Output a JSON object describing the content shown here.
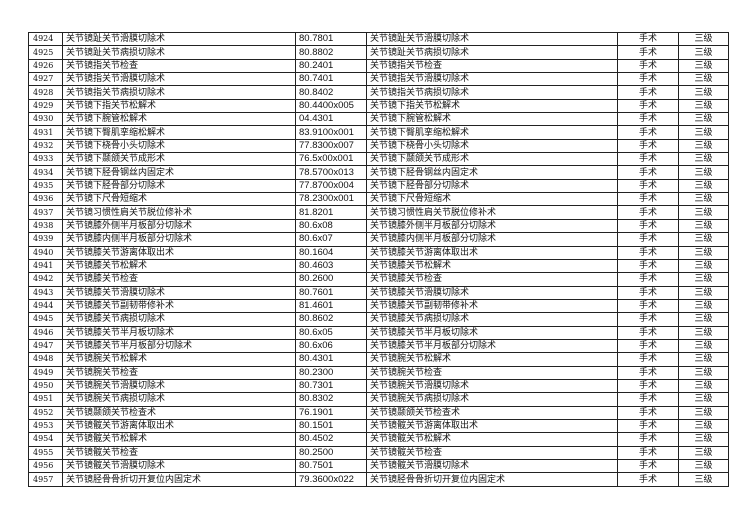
{
  "table": {
    "rows": [
      {
        "no": "4924",
        "name": "关节镜趾关节滑膜切除术",
        "code": "80.7801",
        "name2": "关节镜趾关节滑膜切除术",
        "type": "手术",
        "level": "三级"
      },
      {
        "no": "4925",
        "name": "关节镜趾关节病损切除术",
        "code": "80.8802",
        "name2": "关节镜趾关节病损切除术",
        "type": "手术",
        "level": "三级"
      },
      {
        "no": "4926",
        "name": "关节镜指关节检查",
        "code": "80.2401",
        "name2": "关节镜指关节检查",
        "type": "手术",
        "level": "三级"
      },
      {
        "no": "4927",
        "name": "关节镜指关节滑膜切除术",
        "code": "80.7401",
        "name2": "关节镜指关节滑膜切除术",
        "type": "手术",
        "level": "三级"
      },
      {
        "no": "4928",
        "name": "关节镜指关节病损切除术",
        "code": "80.8402",
        "name2": "关节镜指关节病损切除术",
        "type": "手术",
        "level": "三级"
      },
      {
        "no": "4929",
        "name": "关节镜下指关节松解术",
        "code": "80.4400x005",
        "name2": "关节镜下指关节松解术",
        "type": "手术",
        "level": "三级"
      },
      {
        "no": "4930",
        "name": "关节镜下腕管松解术",
        "code": "04.4301",
        "name2": "关节镜下腕管松解术",
        "type": "手术",
        "level": "三级"
      },
      {
        "no": "4931",
        "name": "关节镜下臀肌挛缩松解术",
        "code": "83.9100x001",
        "name2": "关节镜下臀肌挛缩松解术",
        "type": "手术",
        "level": "三级"
      },
      {
        "no": "4932",
        "name": "关节镜下桡骨小头切除术",
        "code": "77.8300x007",
        "name2": "关节镜下桡骨小头切除术",
        "type": "手术",
        "level": "三级"
      },
      {
        "no": "4933",
        "name": "关节镜下颞颌关节成形术",
        "code": "76.5x00x001",
        "name2": "关节镜下颞颌关节成形术",
        "type": "手术",
        "level": "三级"
      },
      {
        "no": "4934",
        "name": "关节镜下胫骨钢丝内固定术",
        "code": "78.5700x013",
        "name2": "关节镜下胫骨钢丝内固定术",
        "type": "手术",
        "level": "三级"
      },
      {
        "no": "4935",
        "name": "关节镜下胫骨部分切除术",
        "code": "77.8700x004",
        "name2": "关节镜下胫骨部分切除术",
        "type": "手术",
        "level": "三级"
      },
      {
        "no": "4936",
        "name": "关节镜下尺骨短缩术",
        "code": "78.2300x001",
        "name2": "关节镜下尺骨短缩术",
        "type": "手术",
        "level": "三级"
      },
      {
        "no": "4937",
        "name": "关节镜习惯性肩关节脱位修补术",
        "code": "81.8201",
        "name2": "关节镜习惯性肩关节脱位修补术",
        "type": "手术",
        "level": "三级"
      },
      {
        "no": "4938",
        "name": "关节镜膝外侧半月板部分切除术",
        "code": "80.6x08",
        "name2": "关节镜膝外侧半月板部分切除术",
        "type": "手术",
        "level": "三级"
      },
      {
        "no": "4939",
        "name": "关节镜膝内侧半月板部分切除术",
        "code": "80.6x07",
        "name2": "关节镜膝内侧半月板部分切除术",
        "type": "手术",
        "level": "三级"
      },
      {
        "no": "4940",
        "name": "关节镜膝关节游离体取出术",
        "code": "80.1604",
        "name2": "关节镜膝关节游离体取出术",
        "type": "手术",
        "level": "三级"
      },
      {
        "no": "4941",
        "name": "关节镜膝关节松解术",
        "code": "80.4603",
        "name2": "关节镜膝关节松解术",
        "type": "手术",
        "level": "三级"
      },
      {
        "no": "4942",
        "name": "关节镜膝关节检查",
        "code": "80.2600",
        "name2": "关节镜膝关节检查",
        "type": "手术",
        "level": "三级"
      },
      {
        "no": "4943",
        "name": "关节镜膝关节滑膜切除术",
        "code": "80.7601",
        "name2": "关节镜膝关节滑膜切除术",
        "type": "手术",
        "level": "三级"
      },
      {
        "no": "4944",
        "name": "关节镜膝关节副韧带修补术",
        "code": "81.4601",
        "name2": "关节镜膝关节副韧带修补术",
        "type": "手术",
        "level": "三级"
      },
      {
        "no": "4945",
        "name": "关节镜膝关节病损切除术",
        "code": "80.8602",
        "name2": "关节镜膝关节病损切除术",
        "type": "手术",
        "level": "三级"
      },
      {
        "no": "4946",
        "name": "关节镜膝关节半月板切除术",
        "code": "80.6x05",
        "name2": "关节镜膝关节半月板切除术",
        "type": "手术",
        "level": "三级"
      },
      {
        "no": "4947",
        "name": "关节镜膝关节半月板部分切除术",
        "code": "80.6x06",
        "name2": "关节镜膝关节半月板部分切除术",
        "type": "手术",
        "level": "三级"
      },
      {
        "no": "4948",
        "name": "关节镜腕关节松解术",
        "code": "80.4301",
        "name2": "关节镜腕关节松解术",
        "type": "手术",
        "level": "三级"
      },
      {
        "no": "4949",
        "name": "关节镜腕关节检查",
        "code": "80.2300",
        "name2": "关节镜腕关节检查",
        "type": "手术",
        "level": "三级"
      },
      {
        "no": "4950",
        "name": "关节镜腕关节滑膜切除术",
        "code": "80.7301",
        "name2": "关节镜腕关节滑膜切除术",
        "type": "手术",
        "level": "三级"
      },
      {
        "no": "4951",
        "name": "关节镜腕关节病损切除术",
        "code": "80.8302",
        "name2": "关节镜腕关节病损切除术",
        "type": "手术",
        "level": "三级"
      },
      {
        "no": "4952",
        "name": "关节镜颞颌关节检查术",
        "code": "76.1901",
        "name2": "关节镜颞颌关节检查术",
        "type": "手术",
        "level": "三级"
      },
      {
        "no": "4953",
        "name": "关节镜髋关节游离体取出术",
        "code": "80.1501",
        "name2": "关节镜髋关节游离体取出术",
        "type": "手术",
        "level": "三级"
      },
      {
        "no": "4954",
        "name": "关节镜髋关节松解术",
        "code": "80.4502",
        "name2": "关节镜髋关节松解术",
        "type": "手术",
        "level": "三级"
      },
      {
        "no": "4955",
        "name": "关节镜髋关节检查",
        "code": "80.2500",
        "name2": "关节镜髋关节检查",
        "type": "手术",
        "level": "三级"
      },
      {
        "no": "4956",
        "name": "关节镜髋关节滑膜切除术",
        "code": "80.7501",
        "name2": "关节镜髋关节滑膜切除术",
        "type": "手术",
        "level": "三级"
      },
      {
        "no": "4957",
        "name": "关节镜胫骨骨折切开复位内固定术",
        "code": "79.3600x022",
        "name2": "关节镜胫骨骨折切开复位内固定术",
        "type": "手术",
        "level": "三级"
      }
    ]
  }
}
